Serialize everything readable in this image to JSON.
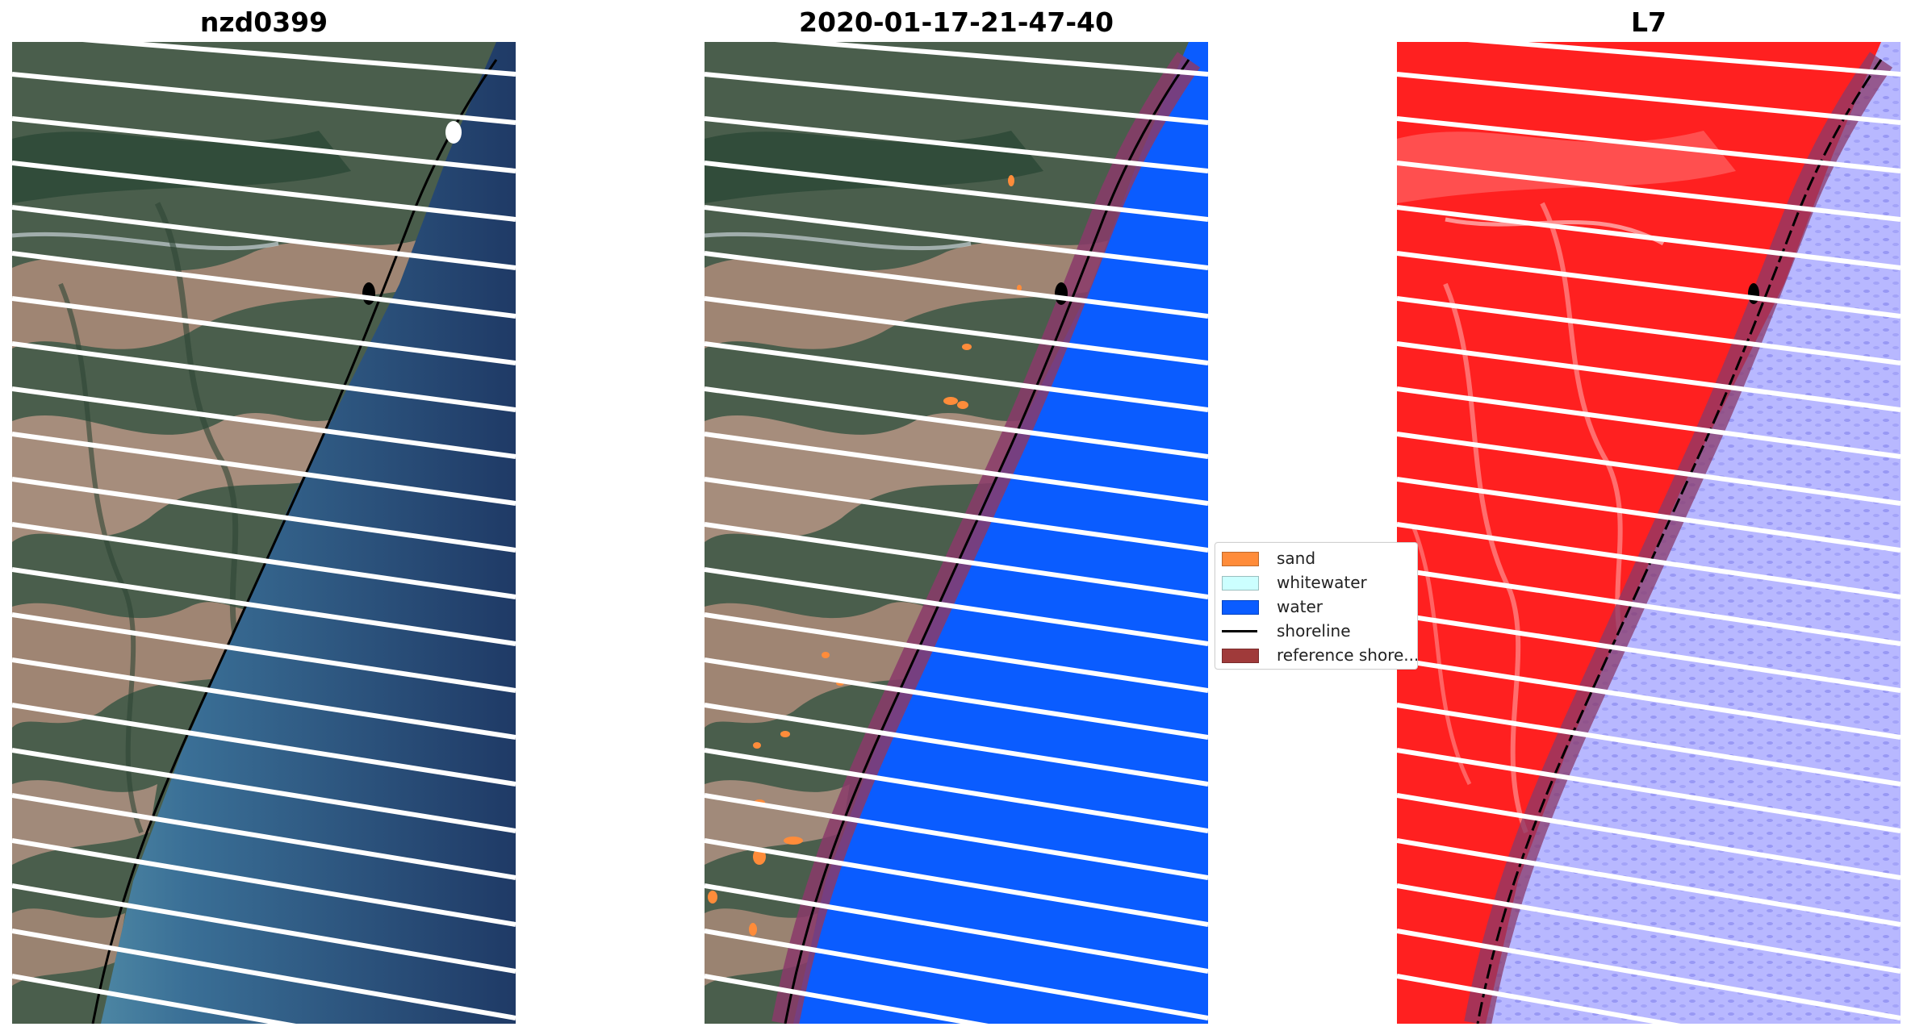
{
  "panels": [
    {
      "title": "nzd0399"
    },
    {
      "title": "2020-01-17-21-47-40"
    },
    {
      "title": "L7"
    }
  ],
  "legend": {
    "items": [
      {
        "label": "sand",
        "color": "#ff8c3a",
        "kind": "patch"
      },
      {
        "label": "whitewater",
        "color": "#ccffff",
        "kind": "patch"
      },
      {
        "label": "water",
        "color": "#0a5cff",
        "kind": "patch"
      },
      {
        "label": "shoreline",
        "color": "#000000",
        "kind": "line"
      },
      {
        "label": "reference shore...",
        "color": "#a03a3a",
        "kind": "patch"
      }
    ]
  },
  "colors": {
    "land_green": "#3c5a46",
    "land_brown": "#a88a78",
    "sea_deep": "#1e3a64",
    "sea_shallow": "#4a86a8",
    "water_class": "#0a5cff",
    "reference_buffer": "#8a3a6a",
    "land_red": "#ff2020",
    "water_lavender": "#b8b8ff",
    "scan_gap": "#ffffff"
  }
}
